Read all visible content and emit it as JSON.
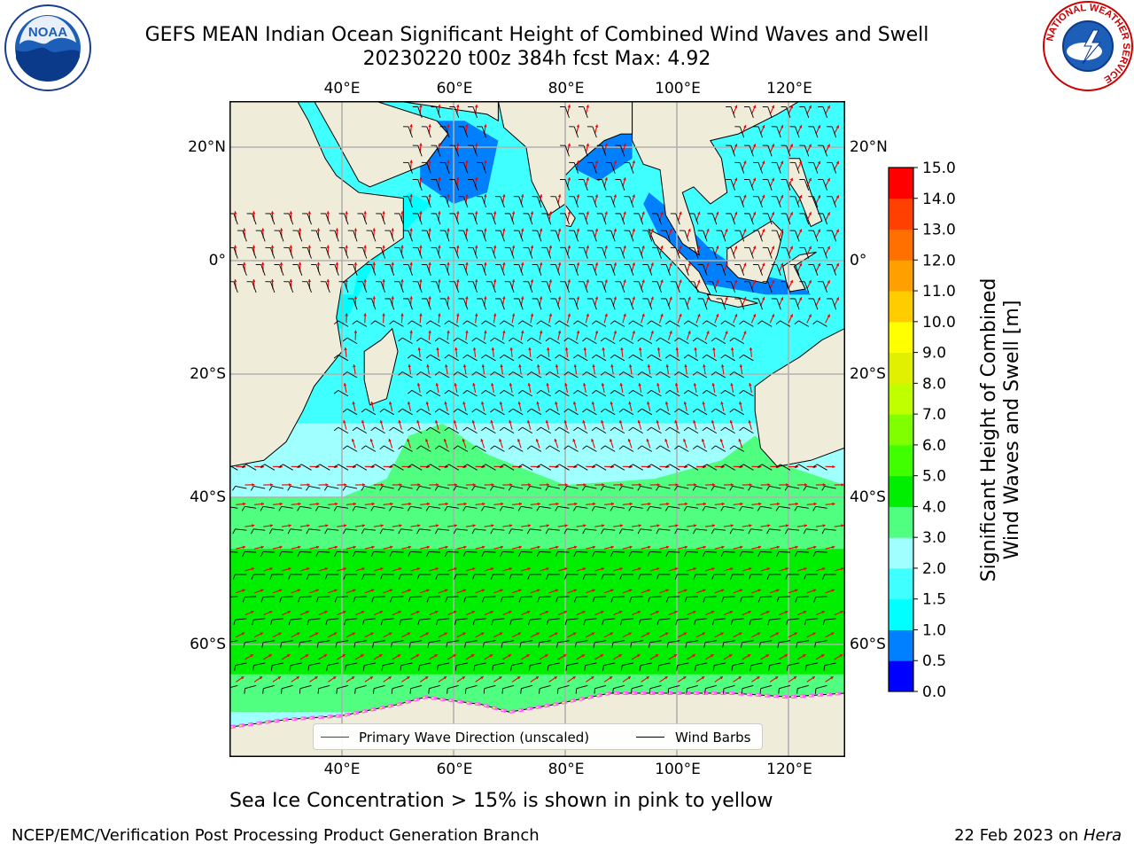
{
  "title": {
    "line1": "GEFS MEAN Indian Ocean Significant Height of Combined Wind Waves and Swell",
    "line2": "20230220 t00z 384h fcst   Max: 4.92"
  },
  "logos": {
    "left": {
      "name": "noaa-logo",
      "text": "NOAA",
      "ring_text": "NATIONAL OCEANIC AND ATMOSPHERIC ADMINISTRATION · U.S. DEPARTMENT OF COMMERCE"
    },
    "right": {
      "name": "nws-logo",
      "ring_text": "NATIONAL WEATHER SERVICE"
    }
  },
  "map": {
    "lon_range": [
      20,
      130
    ],
    "lat_range": [
      -75,
      27
    ],
    "lon_ticks": [
      40,
      60,
      80,
      100,
      120
    ],
    "lat_ticks": [
      20,
      0,
      -20,
      -40,
      -60
    ],
    "lon_tick_labels": [
      "40°E",
      "60°E",
      "80°E",
      "100°E",
      "120°E"
    ],
    "lat_tick_labels": [
      "20°N",
      "0°",
      "20°S",
      "40°S",
      "60°S"
    ],
    "land_color": "#efedda",
    "grid_color": "#b0b0b0",
    "wave_arrow_color": "#ee0000",
    "wind_barb_color": "#000000"
  },
  "legend": {
    "primary_wave": "Primary Wave Direction (unscaled)",
    "wind_barbs": "Wind Barbs"
  },
  "colorbar": {
    "label_line1": "Significant Height of Combined",
    "label_line2": "Wind Waves and Swell [m]",
    "levels": [
      "0.0",
      "0.5",
      "1.0",
      "1.5",
      "2.0",
      "3.0",
      "4.0",
      "5.0",
      "6.0",
      "7.0",
      "8.0",
      "9.0",
      "10.0",
      "11.0",
      "12.0",
      "13.0",
      "14.0",
      "15.0"
    ],
    "colors": [
      "#0000ff",
      "#0080ff",
      "#00ffff",
      "#40ffff",
      "#a0ffff",
      "#50ff80",
      "#00ee00",
      "#40ff00",
      "#80ff00",
      "#c0ff00",
      "#e0f000",
      "#ffff00",
      "#ffcc00",
      "#ffa000",
      "#ff7000",
      "#ff4000",
      "#ff0000"
    ]
  },
  "subtitle": "Sea Ice Concentration > 15% is shown in pink to yellow",
  "footer": {
    "left": "NCEP/EMC/Verification Post Processing Product Generation Branch",
    "right_prefix": "22 Feb 2023 on ",
    "right_host": "Hera"
  }
}
